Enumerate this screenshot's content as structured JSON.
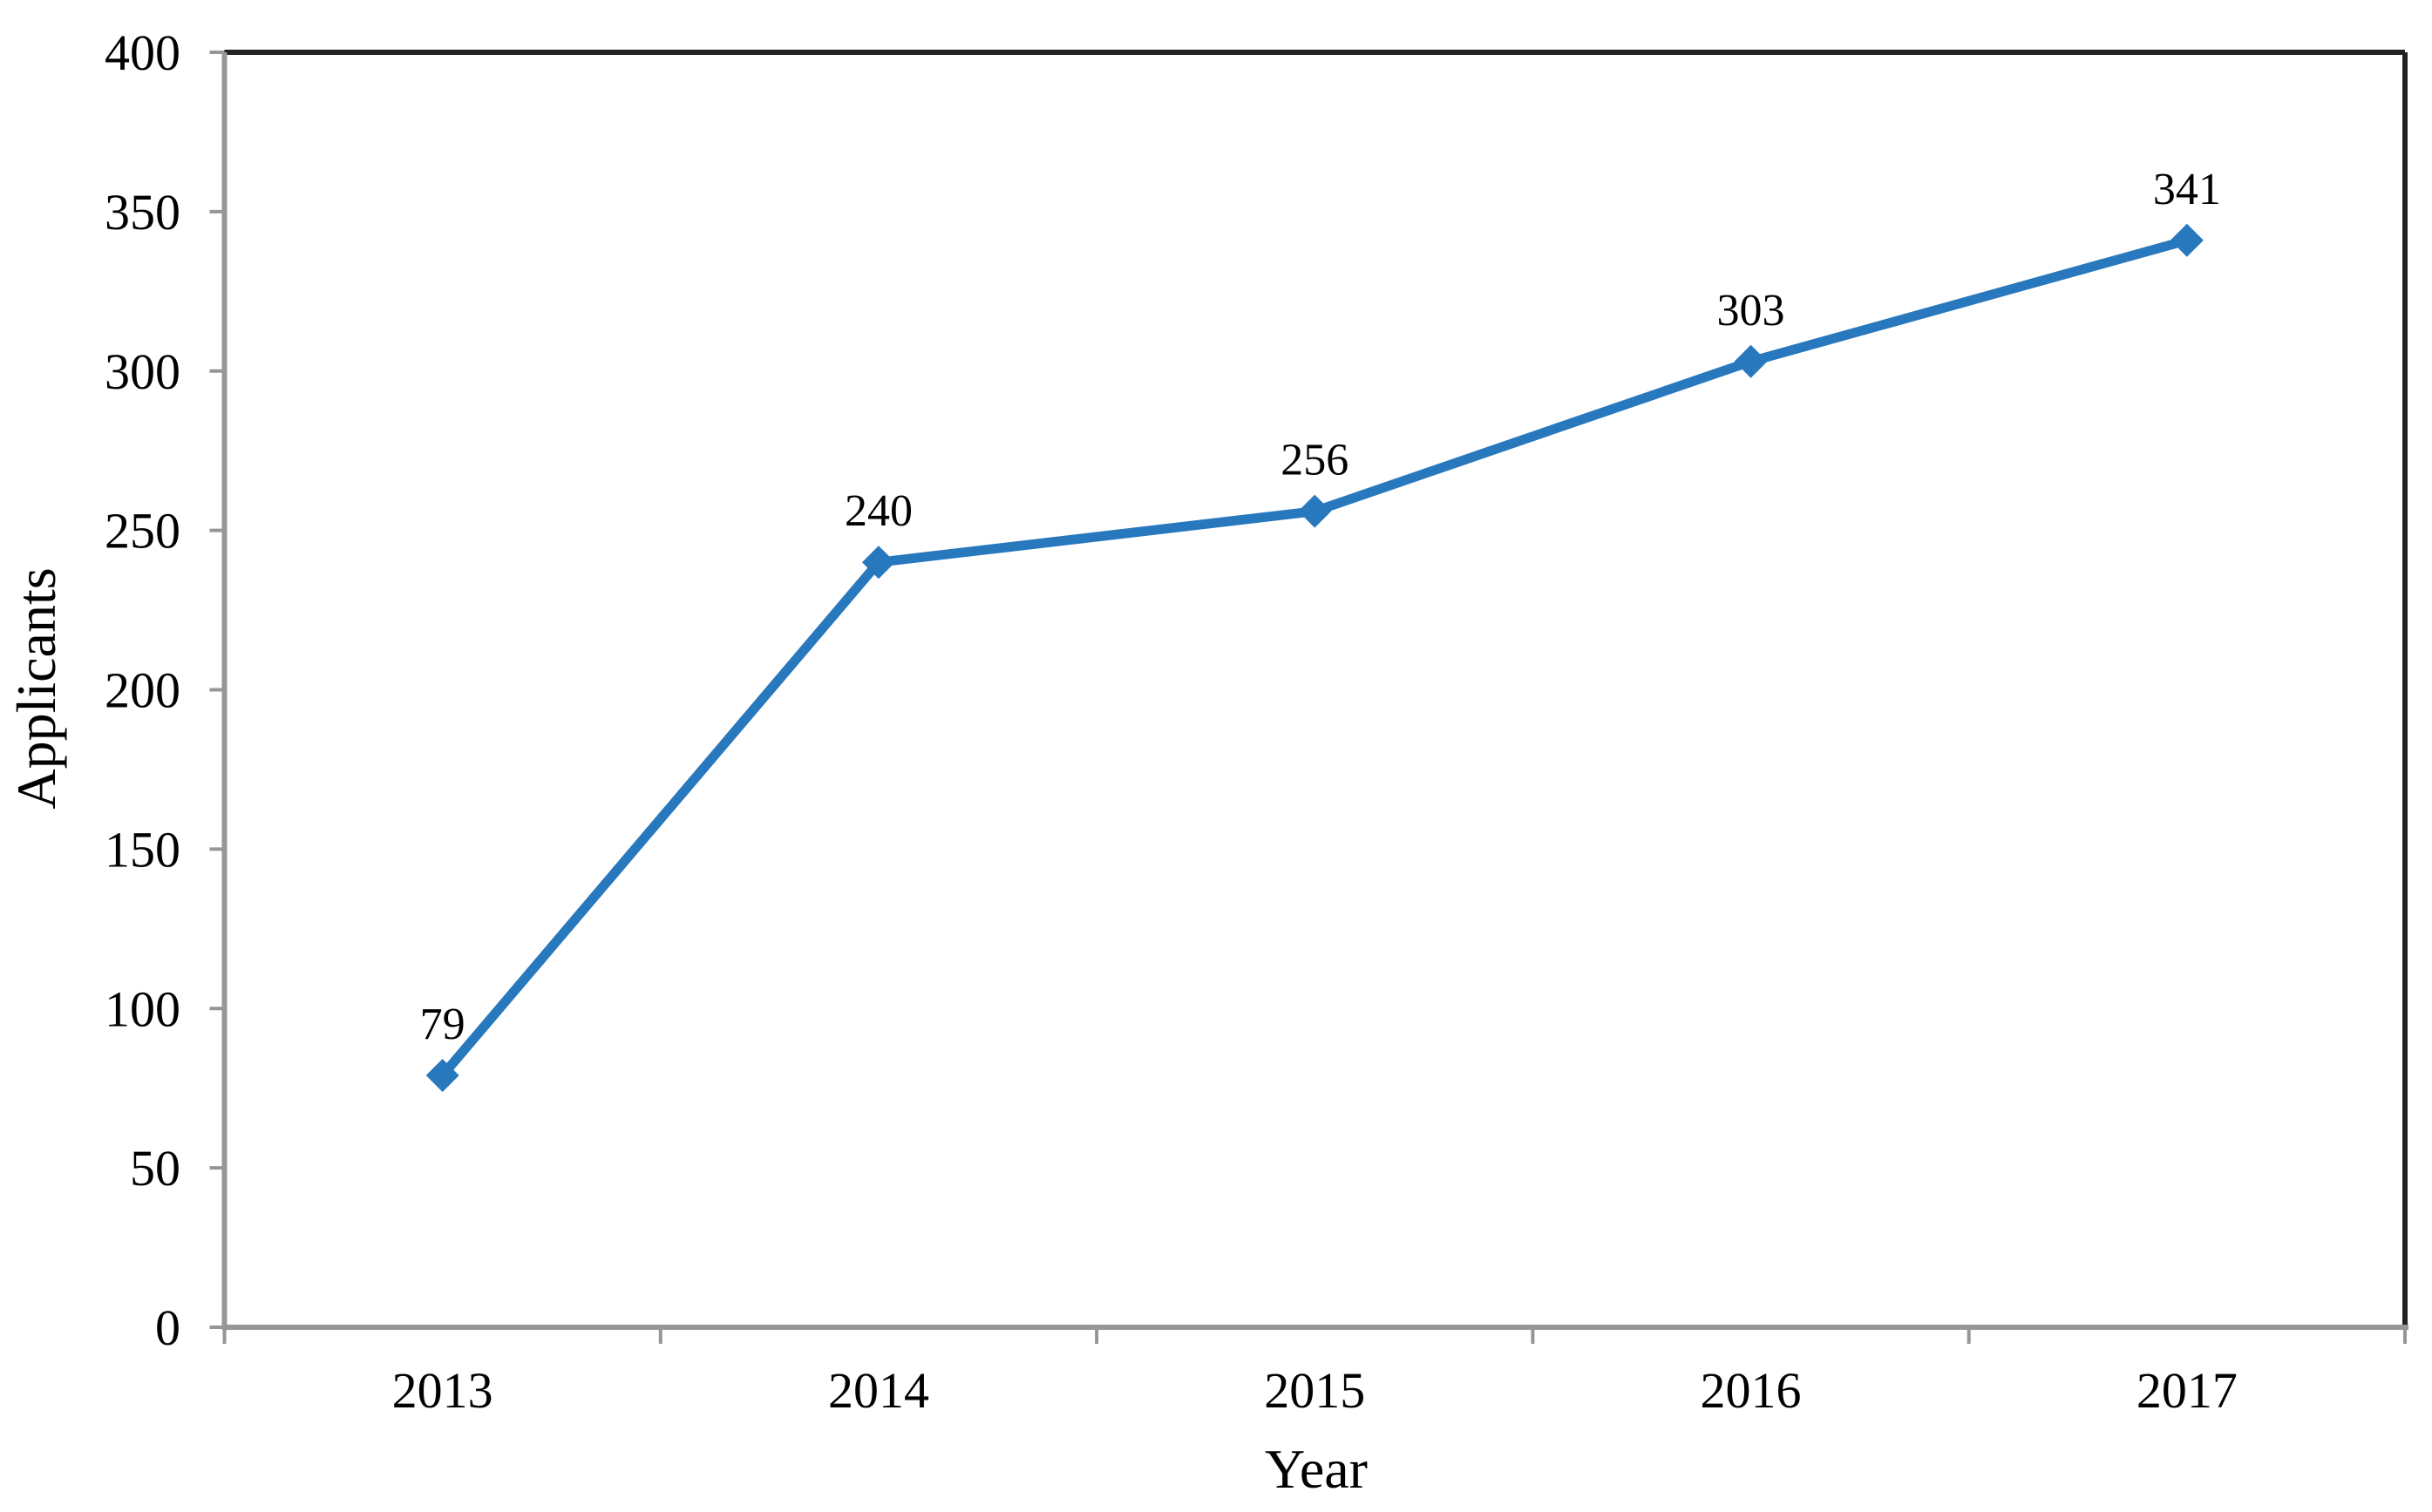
{
  "chart_data": {
    "type": "line",
    "title": "",
    "xlabel": "Year",
    "ylabel": "Applicants",
    "categories": [
      "2013",
      "2014",
      "2015",
      "2016",
      "2017"
    ],
    "series": [
      {
        "name": "Applicants",
        "values": [
          79,
          240,
          256,
          303,
          341
        ],
        "color": "#2878BE"
      }
    ],
    "data_labels": [
      "79",
      "240",
      "256",
      "303",
      "341"
    ],
    "y_ticks": [
      0,
      50,
      100,
      150,
      200,
      250,
      300,
      350,
      400
    ],
    "y_tick_labels": [
      "0",
      "50",
      "100",
      "150",
      "200",
      "250",
      "300",
      "350",
      "400"
    ],
    "ylim": [
      0,
      400
    ],
    "grid": false,
    "legend": false,
    "marker": "diamond",
    "axis_color": "#969696",
    "plot_border_color": "#212121",
    "text_color": "#000000",
    "background_color": "#ffffff"
  }
}
